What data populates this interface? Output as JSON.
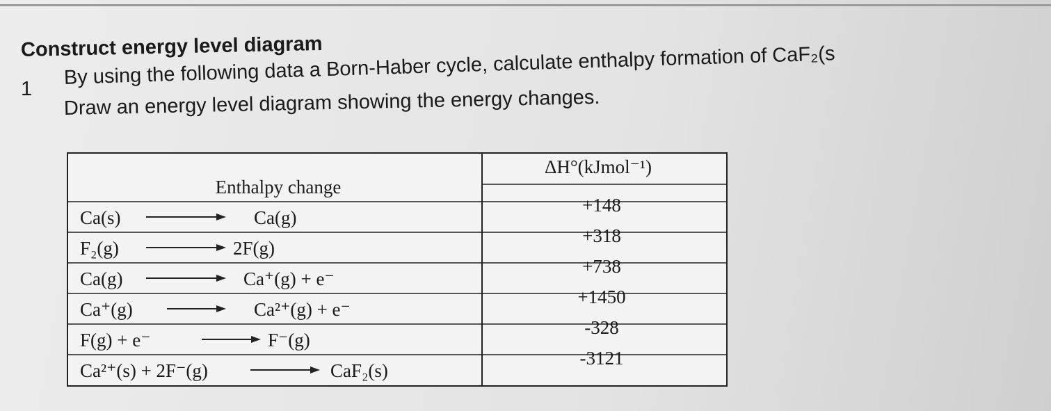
{
  "header": {
    "title": "Construct energy level diagram"
  },
  "question": {
    "number": "1",
    "lines": [
      "By using the following data a Born-Haber cycle, calculate enthalpy formation of CaF₂(s",
      "Draw an energy level diagram showing the energy changes."
    ]
  },
  "table": {
    "headers": [
      "Enthalpy change",
      "ΔH°(kJmol⁻¹)"
    ],
    "rows": [
      {
        "reactant": "Ca(s)",
        "product": "Ca(g)",
        "value": "+148"
      },
      {
        "reactant": "F₂(g)",
        "product": "2F(g)",
        "value": "+318"
      },
      {
        "reactant": "Ca(g)",
        "product": "Ca⁺(g) + e⁻",
        "value": "+738"
      },
      {
        "reactant": "Ca⁺(g)",
        "product": "Ca²⁺(g) + e⁻",
        "value": "+1450"
      },
      {
        "reactant": "F(g) + e⁻",
        "product": "F⁻(g)",
        "value": "-328"
      },
      {
        "reactant": "Ca²⁺(s) + 2F⁻(g)",
        "product": "CaF₂(s)",
        "value": "-3121"
      }
    ]
  }
}
